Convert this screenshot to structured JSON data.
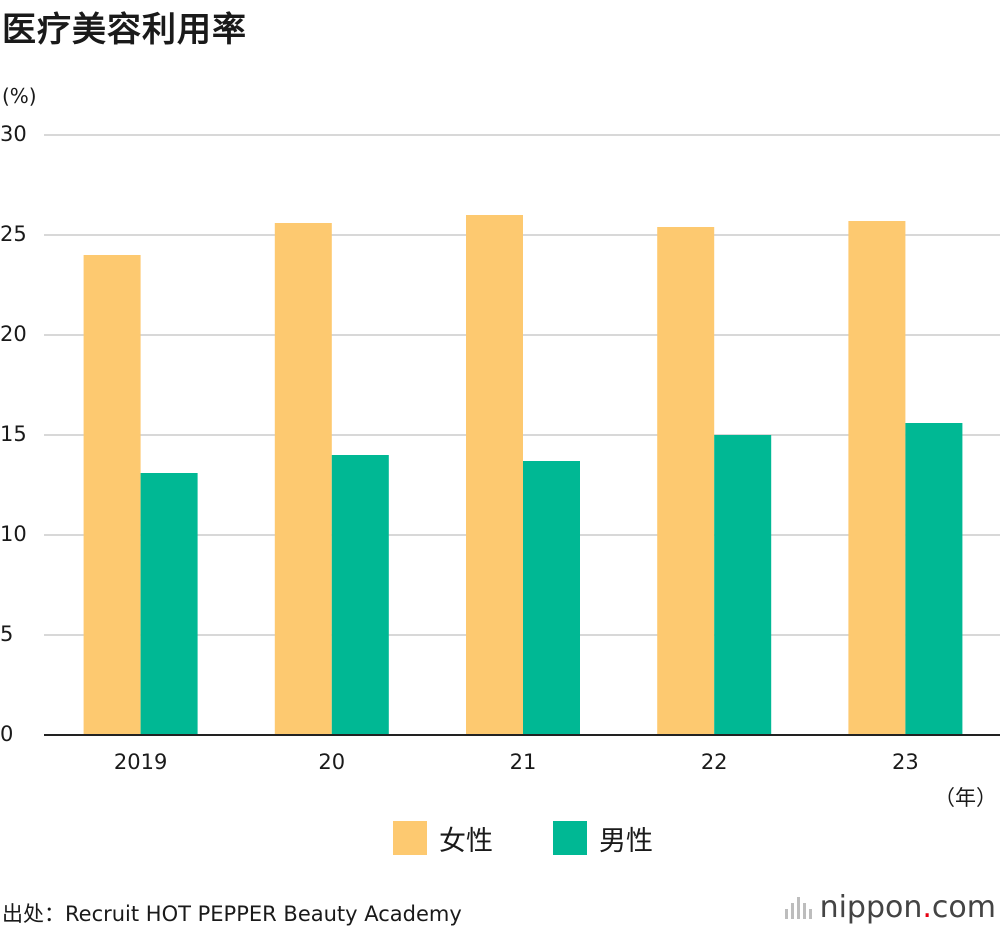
{
  "title": "医疗美容利用率",
  "ylabel": "(%)",
  "xunit": "（年）",
  "source": "出处：Recruit HOT PEPPER Beauty Academy",
  "logo": {
    "main": "nippon",
    "dot": ".",
    "suffix": "com"
  },
  "colors": {
    "female": "#fdc970",
    "male": "#00b894",
    "grid": "#cccccc",
    "axis": "#222222"
  },
  "chart_data": {
    "type": "bar",
    "categories": [
      "2019",
      "20",
      "21",
      "22",
      "23"
    ],
    "series": [
      {
        "name": "女性",
        "values": [
          24.0,
          25.6,
          26.0,
          25.4,
          25.7
        ]
      },
      {
        "name": "男性",
        "values": [
          13.1,
          14.0,
          13.7,
          15.0,
          15.6
        ]
      }
    ],
    "ylim": [
      0,
      30
    ],
    "yticks": [
      "0",
      "5",
      "10",
      "15",
      "20",
      "25",
      "30"
    ],
    "grid": true,
    "legend": "bottom"
  }
}
